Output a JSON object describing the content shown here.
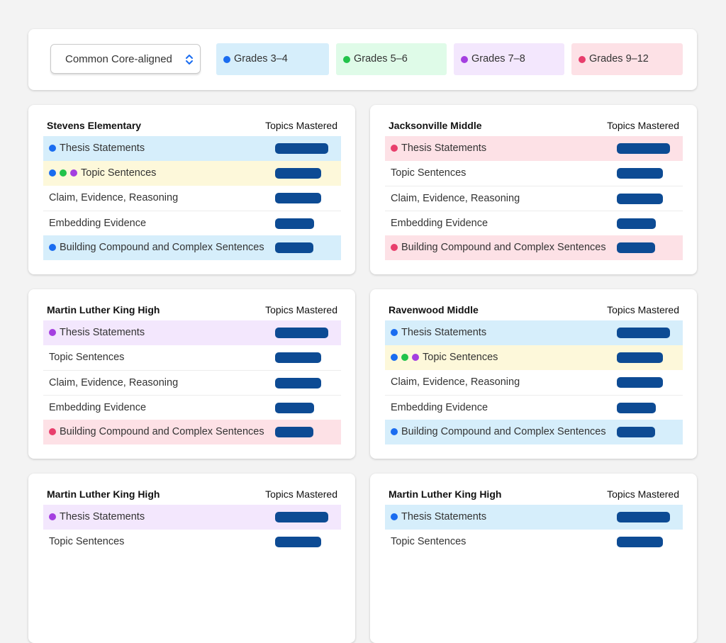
{
  "filter": {
    "label": "Common Core-aligned"
  },
  "legend": [
    {
      "label": "Grades 3–4",
      "color": "#1a6cf0",
      "background": "#d6eefb"
    },
    {
      "label": "Grades 5–6",
      "color": "#22c34a",
      "background": "#dffbe8"
    },
    {
      "label": "Grades 7–8",
      "color": "#a43fe0",
      "background": "#f3e7fd"
    },
    {
      "label": "Grades 9–12",
      "color": "#e83e6c",
      "background": "#fde1e6"
    }
  ],
  "bar_color": "#0d4b94",
  "cards": [
    {
      "school": "Stevens Elementary",
      "column": "Topics Mastered",
      "rows": [
        {
          "topic": "Thesis Statements",
          "dots": [
            "#1a6cf0"
          ],
          "background": "#d6eefb",
          "mastered": 75
        },
        {
          "topic": "Topic Sentences",
          "dots": [
            "#1a6cf0",
            "#22c34a",
            "#a43fe0"
          ],
          "background": "#fdf8da",
          "mastered": 65
        },
        {
          "topic": "Claim, Evidence, Reasoning",
          "dots": [],
          "background": "#ffffff",
          "mastered": 65
        },
        {
          "topic": "Embedding Evidence",
          "dots": [],
          "background": "#ffffff",
          "mastered": 55
        },
        {
          "topic": "Building Compound and Complex Sentences",
          "dots": [
            "#1a6cf0"
          ],
          "background": "#d6eefb",
          "mastered": 54
        }
      ]
    },
    {
      "school": "Jacksonville Middle",
      "column": "Topics Mastered",
      "rows": [
        {
          "topic": "Thesis Statements",
          "dots": [
            "#e83e6c"
          ],
          "background": "#fde1e6",
          "mastered": 75
        },
        {
          "topic": "Topic Sentences",
          "dots": [],
          "background": "#ffffff",
          "mastered": 65
        },
        {
          "topic": "Claim, Evidence, Reasoning",
          "dots": [],
          "background": "#ffffff",
          "mastered": 65
        },
        {
          "topic": "Embedding Evidence",
          "dots": [],
          "background": "#ffffff",
          "mastered": 55
        },
        {
          "topic": "Building Compound and Complex Sentences",
          "dots": [
            "#e83e6c"
          ],
          "background": "#fde1e6",
          "mastered": 54
        }
      ]
    },
    {
      "school": "Martin Luther King High",
      "column": "Topics Mastered",
      "rows": [
        {
          "topic": "Thesis Statements",
          "dots": [
            "#a43fe0"
          ],
          "background": "#f3e7fd",
          "mastered": 75
        },
        {
          "topic": "Topic Sentences",
          "dots": [],
          "background": "#ffffff",
          "mastered": 65
        },
        {
          "topic": "Claim, Evidence, Reasoning",
          "dots": [],
          "background": "#ffffff",
          "mastered": 65
        },
        {
          "topic": "Embedding Evidence",
          "dots": [],
          "background": "#ffffff",
          "mastered": 55
        },
        {
          "topic": "Building Compound and Complex Sentences",
          "dots": [
            "#e83e6c"
          ],
          "background": "#fde1e6",
          "mastered": 54
        }
      ]
    },
    {
      "school": "Ravenwood Middle",
      "column": "Topics Mastered",
      "rows": [
        {
          "topic": "Thesis Statements",
          "dots": [
            "#1a6cf0"
          ],
          "background": "#d6eefb",
          "mastered": 75
        },
        {
          "topic": "Topic Sentences",
          "dots": [
            "#1a6cf0",
            "#22c34a",
            "#a43fe0"
          ],
          "background": "#fdf8da",
          "mastered": 65
        },
        {
          "topic": "Claim, Evidence, Reasoning",
          "dots": [],
          "background": "#ffffff",
          "mastered": 65
        },
        {
          "topic": "Embedding Evidence",
          "dots": [],
          "background": "#ffffff",
          "mastered": 55
        },
        {
          "topic": "Building Compound and Complex Sentences",
          "dots": [
            "#1a6cf0"
          ],
          "background": "#d6eefb",
          "mastered": 54
        }
      ]
    },
    {
      "school": "Martin Luther King High",
      "column": "Topics Mastered",
      "rows": [
        {
          "topic": "Thesis Statements",
          "dots": [
            "#a43fe0"
          ],
          "background": "#f3e7fd",
          "mastered": 75
        },
        {
          "topic": "Topic Sentences",
          "dots": [],
          "background": "#ffffff",
          "mastered": 65
        }
      ]
    },
    {
      "school": "Martin Luther King High",
      "column": "Topics Mastered",
      "rows": [
        {
          "topic": "Thesis Statements",
          "dots": [
            "#1a6cf0"
          ],
          "background": "#d6eefb",
          "mastered": 75
        },
        {
          "topic": "Topic Sentences",
          "dots": [],
          "background": "#ffffff",
          "mastered": 65
        }
      ]
    }
  ]
}
